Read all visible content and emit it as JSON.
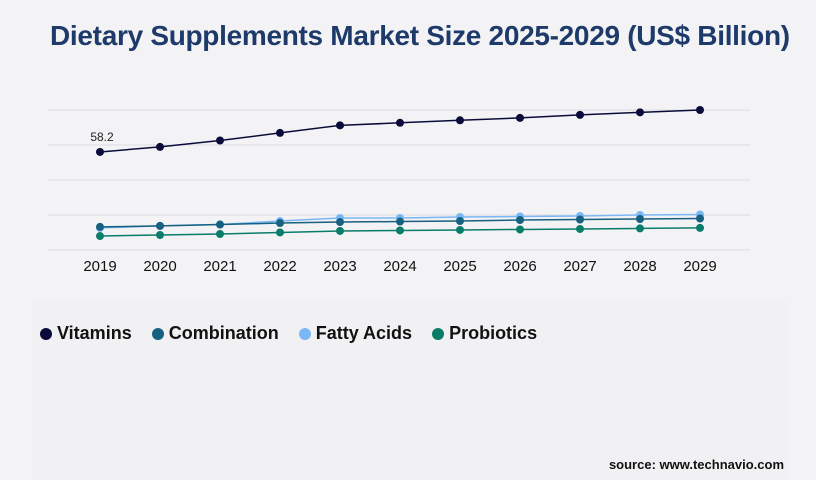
{
  "chart_data": {
    "type": "line",
    "title": "Dietary Supplements Market Size 2025-2029 (US$ Billion)",
    "xlabel": "",
    "ylabel": "",
    "categories": [
      "2019",
      "2020",
      "2021",
      "2022",
      "2023",
      "2024",
      "2025",
      "2026",
      "2027",
      "2028",
      "2029"
    ],
    "ylim": [
      0,
      83.1
    ],
    "grid": true,
    "legend_position": "bottom-left",
    "series": [
      {
        "name": "Vitamins",
        "color": "#0b0b3b",
        "values": [
          58.2,
          61.2,
          65.0,
          69.5,
          74.0,
          75.5,
          77.0,
          78.4,
          80.2,
          81.7,
          83.1
        ]
      },
      {
        "name": "Combination",
        "color": "#17607f",
        "values": [
          13.7,
          14.3,
          15.1,
          16.0,
          16.6,
          16.9,
          17.2,
          17.8,
          18.1,
          18.4,
          18.7
        ]
      },
      {
        "name": "Fatty Acids",
        "color": "#7ab8f5",
        "values": [
          13.1,
          14.3,
          15.1,
          17.2,
          19.0,
          19.0,
          19.6,
          19.9,
          20.2,
          20.8,
          21.1
        ]
      },
      {
        "name": "Probiotics",
        "color": "#0a7d6a",
        "values": [
          8.3,
          8.9,
          9.5,
          10.4,
          11.3,
          11.6,
          11.9,
          12.2,
          12.5,
          12.8,
          13.1
        ]
      }
    ],
    "annotations": [
      {
        "series": "Vitamins",
        "category": "2019",
        "text": "58.2"
      }
    ]
  },
  "source": "source: www.technavio.com"
}
